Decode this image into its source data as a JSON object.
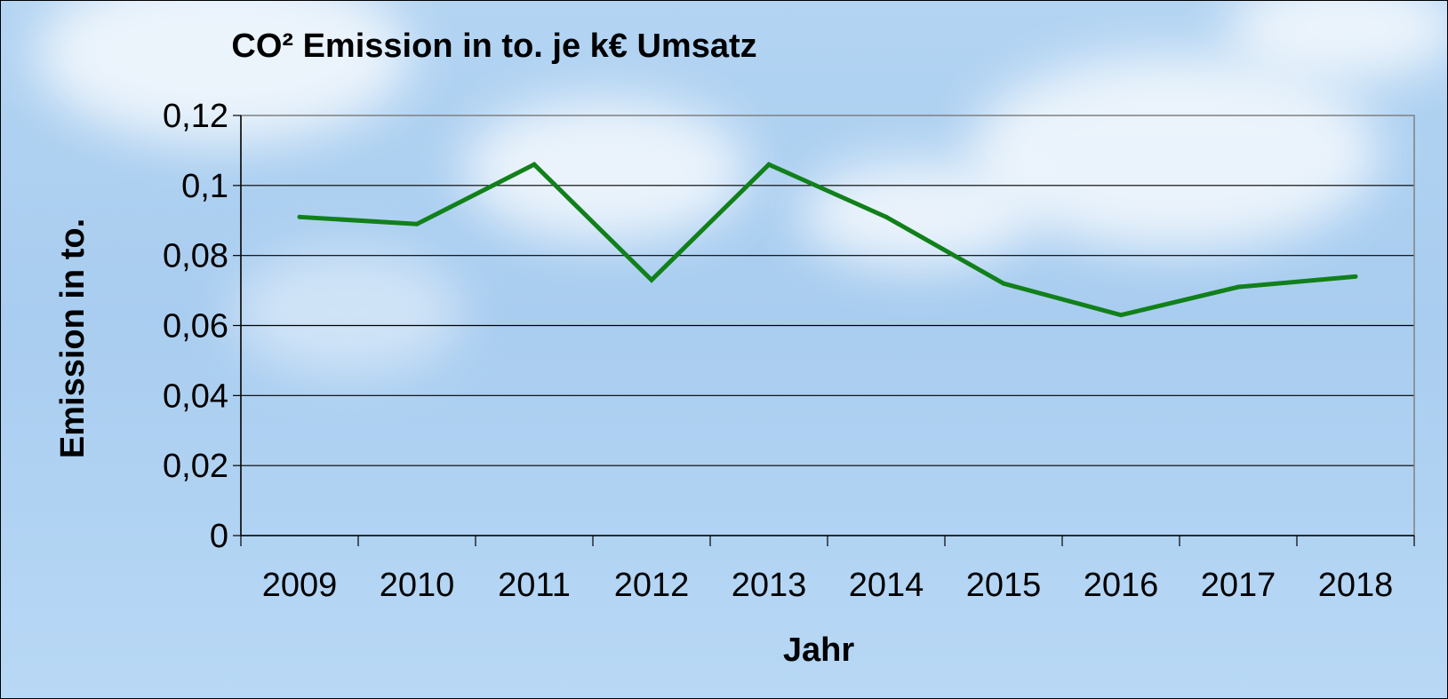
{
  "chart_data": {
    "type": "line",
    "title": "CO² Emission in to. je k€ Umsatz",
    "xlabel": "Jahr",
    "ylabel": "Emission in to.",
    "categories": [
      "2009",
      "2010",
      "2011",
      "2012",
      "2013",
      "2014",
      "2015",
      "2016",
      "2017",
      "2018"
    ],
    "series": [
      {
        "values": [
          0.091,
          0.089,
          0.106,
          0.073,
          0.106,
          0.091,
          0.072,
          0.063,
          0.071,
          0.074
        ]
      }
    ],
    "ylim": [
      0,
      0.12
    ],
    "yticks": [
      "0",
      "0,02",
      "0,04",
      "0,06",
      "0,08",
      "0,1",
      "0,12"
    ],
    "grid": true,
    "legend": "none",
    "line_color": "#11801a",
    "grid_color": "#000000"
  }
}
